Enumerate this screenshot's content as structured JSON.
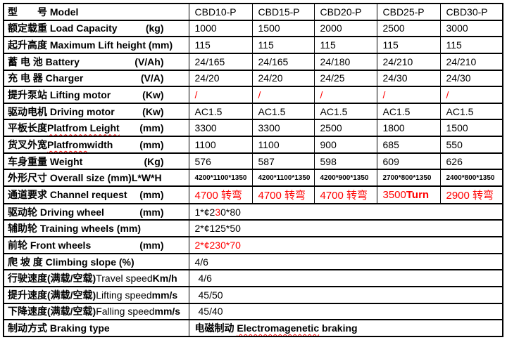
{
  "colors": {
    "red": "#ff0000",
    "text": "#000000",
    "grid": "#000000",
    "background": "#ffffff"
  },
  "table": {
    "rows": [
      {
        "name": "model",
        "label": [
          {
            "t": "型　　号 Model",
            "b": true
          }
        ],
        "cells": [
          [
            {
              "t": "CBD10-P"
            }
          ],
          [
            {
              "t": "CBD15-P"
            }
          ],
          [
            {
              "t": "CBD20-P"
            }
          ],
          [
            {
              "t": "CBD25-P"
            }
          ],
          [
            {
              "t": "CBD30-P"
            }
          ]
        ]
      },
      {
        "name": "load-capacity",
        "label": [
          {
            "t": "额定载重 Load Capacity",
            "b": true
          },
          {
            "t": "(kg)",
            "b": true,
            "gap": true
          }
        ],
        "cells": [
          [
            {
              "t": "1000"
            }
          ],
          [
            {
              "t": "1500"
            }
          ],
          [
            {
              "t": "2000"
            }
          ],
          [
            {
              "t": "2500"
            }
          ],
          [
            {
              "t": "3000"
            }
          ]
        ]
      },
      {
        "name": "max-lift-height",
        "label": [
          {
            "t": "起升高度 Maximum Lift height (mm)",
            "b": true
          }
        ],
        "cells": [
          [
            {
              "t": "115"
            }
          ],
          [
            {
              "t": "115"
            }
          ],
          [
            {
              "t": "115"
            }
          ],
          [
            {
              "t": "115"
            }
          ],
          [
            {
              "t": "115"
            }
          ]
        ]
      },
      {
        "name": "battery",
        "label": [
          {
            "t": "蓄 电 池 Battery",
            "b": true
          },
          {
            "t": "(V/Ah)",
            "b": true,
            "gap": true
          }
        ],
        "cells": [
          [
            {
              "t": "24/165"
            }
          ],
          [
            {
              "t": "24/165"
            }
          ],
          [
            {
              "t": "24/180"
            }
          ],
          [
            {
              "t": "24/210"
            }
          ],
          [
            {
              "t": "24/210"
            }
          ]
        ]
      },
      {
        "name": "charger",
        "label": [
          {
            "t": "充 电 器 Charger",
            "b": true
          },
          {
            "t": "(V/A)",
            "b": true,
            "gap": true
          }
        ],
        "cells": [
          [
            {
              "t": "24/20"
            }
          ],
          [
            {
              "t": "24/20"
            }
          ],
          [
            {
              "t": "24/25"
            }
          ],
          [
            {
              "t": "24/30"
            }
          ],
          [
            {
              "t": "24/30"
            }
          ]
        ]
      },
      {
        "name": "lifting-motor",
        "label": [
          {
            "t": "提升泵站 Lifting motor",
            "b": true
          },
          {
            "t": "(Kw)",
            "b": true,
            "gap": true
          }
        ],
        "cells": [
          [
            {
              "t": "/",
              "c": "red"
            }
          ],
          [
            {
              "t": "/",
              "c": "red"
            }
          ],
          [
            {
              "t": "/",
              "c": "red"
            }
          ],
          [
            {
              "t": "/",
              "c": "red"
            }
          ],
          [
            {
              "t": "/",
              "c": "red"
            }
          ]
        ]
      },
      {
        "name": "driving-motor",
        "label": [
          {
            "t": "驱动电机 Driving motor",
            "b": true
          },
          {
            "t": "(Kw)",
            "b": true,
            "gap": true
          }
        ],
        "cells": [
          [
            {
              "t": "AC1.5"
            }
          ],
          [
            {
              "t": "AC1.5"
            }
          ],
          [
            {
              "t": "AC1.5"
            }
          ],
          [
            {
              "t": "AC1.5"
            }
          ],
          [
            {
              "t": "AC1.5"
            }
          ]
        ]
      },
      {
        "name": "platform-length",
        "label": [
          {
            "t": "平板长度 ",
            "b": true
          },
          {
            "t": "Platfrom Leight",
            "b": true,
            "sq": true
          },
          {
            "t": "(mm)",
            "b": true,
            "gap": true
          }
        ],
        "cells": [
          [
            {
              "t": "3300"
            }
          ],
          [
            {
              "t": "3300"
            }
          ],
          [
            {
              "t": "2500"
            }
          ],
          [
            {
              "t": "1800"
            }
          ],
          [
            {
              "t": "1500"
            }
          ]
        ]
      },
      {
        "name": "platform-width",
        "label": [
          {
            "t": "货叉外宽 ",
            "b": true
          },
          {
            "t": "Platfrom",
            "b": true,
            "sq": true
          },
          {
            "t": " width",
            "b": true
          },
          {
            "t": "(mm)",
            "b": true,
            "gap": true
          }
        ],
        "cells": [
          [
            {
              "t": "1100"
            }
          ],
          [
            {
              "t": "1100"
            }
          ],
          [
            {
              "t": "900"
            }
          ],
          [
            {
              "t": "685"
            }
          ],
          [
            {
              "t": "550"
            }
          ]
        ]
      },
      {
        "name": "weight",
        "label": [
          {
            "t": "车身重量 Weight",
            "b": true
          },
          {
            "t": "(Kg)",
            "b": true,
            "gap": true
          }
        ],
        "cells": [
          [
            {
              "t": "576"
            }
          ],
          [
            {
              "t": "587"
            }
          ],
          [
            {
              "t": "598"
            }
          ],
          [
            {
              "t": "609"
            }
          ],
          [
            {
              "t": "626"
            }
          ]
        ]
      },
      {
        "name": "overall-size",
        "small": true,
        "label": [
          {
            "t": "外形尺寸 Overall size (mm)L*W*H",
            "b": true
          }
        ],
        "cells": [
          [
            {
              "t": "4200*1100*1350"
            }
          ],
          [
            {
              "t": "4200*1100*1350"
            }
          ],
          [
            {
              "t": "4200*900*1350"
            }
          ],
          [
            {
              "t": "2700*800*1350"
            }
          ],
          [
            {
              "t": "2400*800*1350"
            }
          ]
        ]
      },
      {
        "name": "channel-request",
        "big": true,
        "label": [
          {
            "t": "通道要求 Channel request",
            "b": true
          },
          {
            "t": "(mm)",
            "b": true,
            "gap": true
          }
        ],
        "cells": [
          [
            {
              "t": "4700 转弯",
              "c": "red"
            }
          ],
          [
            {
              "t": "4700 转弯",
              "c": "red"
            }
          ],
          [
            {
              "t": "4700 转弯",
              "c": "red"
            }
          ],
          [
            {
              "t": "3500",
              "c": "red"
            },
            {
              "t": "Turn",
              "c": "red",
              "b": true
            }
          ],
          [
            {
              "t": "2900 转弯",
              "c": "red"
            }
          ]
        ]
      },
      {
        "name": "driving-wheel",
        "label": [
          {
            "t": "驱动轮 Driving wheel",
            "b": true
          },
          {
            "t": "(mm)",
            "b": true,
            "gap": true
          }
        ],
        "span": [
          {
            "t": "1*¢2"
          },
          {
            "t": "3",
            "c": "red"
          },
          {
            "t": "0*80"
          }
        ]
      },
      {
        "name": "training-wheels",
        "label": [
          {
            "t": "辅助轮 Training wheels (mm)",
            "b": true
          }
        ],
        "span": [
          {
            "t": "2*¢125*50"
          }
        ]
      },
      {
        "name": "front-wheels",
        "label": [
          {
            "t": "前轮 Front wheels",
            "b": true
          },
          {
            "t": "(mm)",
            "b": true,
            "gap": true
          }
        ],
        "span": [
          {
            "t": "2*¢230*70",
            "c": "red"
          }
        ]
      },
      {
        "name": "climbing-slope",
        "label": [
          {
            "t": "爬 坡 度 Climbing slope (%)",
            "b": true
          }
        ],
        "span": [
          {
            "t": "4/6"
          }
        ]
      },
      {
        "name": "travel-speed",
        "indent": true,
        "label": [
          {
            "t": "行驶速度(满载/空载)",
            "b": true
          },
          {
            "t": "Travel speed"
          },
          {
            "t": "Km/h",
            "b": true,
            "gap": true
          }
        ],
        "span": [
          {
            "t": "4/6"
          }
        ]
      },
      {
        "name": "lifting-speed",
        "indent": true,
        "label": [
          {
            "t": "提升速度(满载/空载) ",
            "b": true
          },
          {
            "t": "Lifting speed "
          },
          {
            "t": "mm/s",
            "b": true
          }
        ],
        "span": [
          {
            "t": "45/50"
          }
        ]
      },
      {
        "name": "falling-speed",
        "indent": true,
        "label": [
          {
            "t": "下降速度(满载/空载)",
            "b": true
          },
          {
            "t": "Falling speed "
          },
          {
            "t": "mm/s",
            "b": true
          }
        ],
        "span": [
          {
            "t": "45/40"
          }
        ]
      },
      {
        "name": "braking-type",
        "label": [
          {
            "t": "制动方式 Braking type",
            "b": true
          }
        ],
        "span": [
          {
            "t": "电磁制动 ",
            "b": true
          },
          {
            "t": "Electromagenetic",
            "b": true,
            "sq": true
          },
          {
            "t": " braking",
            "b": true
          }
        ]
      }
    ]
  }
}
